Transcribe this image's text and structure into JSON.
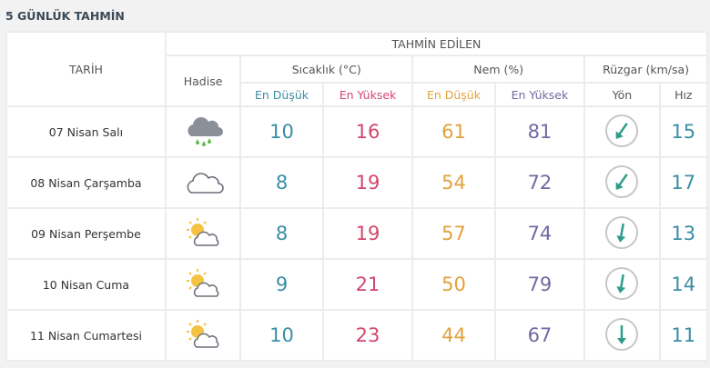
{
  "title": "5 GÜNLÜK TAHMİN",
  "table": {
    "header": {
      "date": "TARİH",
      "forecast": "TAHMİN EDİLEN",
      "event": "Hadise",
      "temperature": "Sıcaklık (°C)",
      "humidity": "Nem (%)",
      "wind": "Rüzgar (km/sa)",
      "temp_min": "En Düşük",
      "temp_max": "En Yüksek",
      "hum_min": "En Düşük",
      "hum_max": "En Yüksek",
      "direction": "Yön",
      "speed": "Hız"
    },
    "rows": [
      [
        "07 Nisan Salı",
        10,
        16,
        61,
        81,
        15
      ],
      [
        "08 Nisan Çarşamba",
        8,
        19,
        54,
        72,
        17
      ],
      [
        "09 Nisan Perşembe",
        8,
        19,
        57,
        74,
        13
      ],
      [
        "10 Nisan Cuma",
        9,
        21,
        50,
        79,
        14
      ],
      [
        "11 Nisan Cumartesi",
        10,
        23,
        44,
        67,
        11
      ]
    ]
  }
}
